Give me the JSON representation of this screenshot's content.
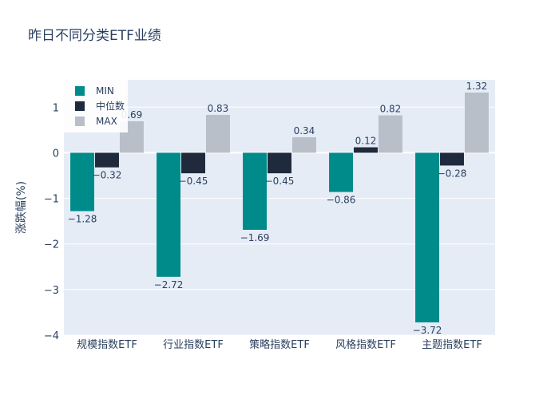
{
  "chart_data": {
    "type": "bar",
    "title": "昨日不同分类ETF业绩",
    "xlabel": "",
    "ylabel": "涨跌幅(%)",
    "categories": [
      "规模指数ETF",
      "行业指数ETF",
      "策略指数ETF",
      "风格指数ETF",
      "主题指数ETF"
    ],
    "series": [
      {
        "name": "MIN",
        "color": "#008b8b",
        "values": [
          -1.28,
          -2.72,
          -1.69,
          -0.86,
          -3.72
        ]
      },
      {
        "name": "中位数",
        "color": "#1f2a3c",
        "values": [
          -0.32,
          -0.45,
          -0.45,
          0.12,
          -0.28
        ]
      },
      {
        "name": "MAX",
        "color": "#b8bfc8",
        "values": [
          0.69,
          0.83,
          0.34,
          0.82,
          1.32
        ]
      }
    ],
    "ylim": [
      -4,
      1.6
    ],
    "yticks": [
      -4,
      -3,
      -2,
      -1,
      0,
      1
    ],
    "ytick_labels": [
      "−4",
      "−3",
      "−2",
      "−1",
      "0",
      "1"
    ],
    "grid": true,
    "legend_position": "top-left",
    "plot_background": "#e5ecf6"
  }
}
